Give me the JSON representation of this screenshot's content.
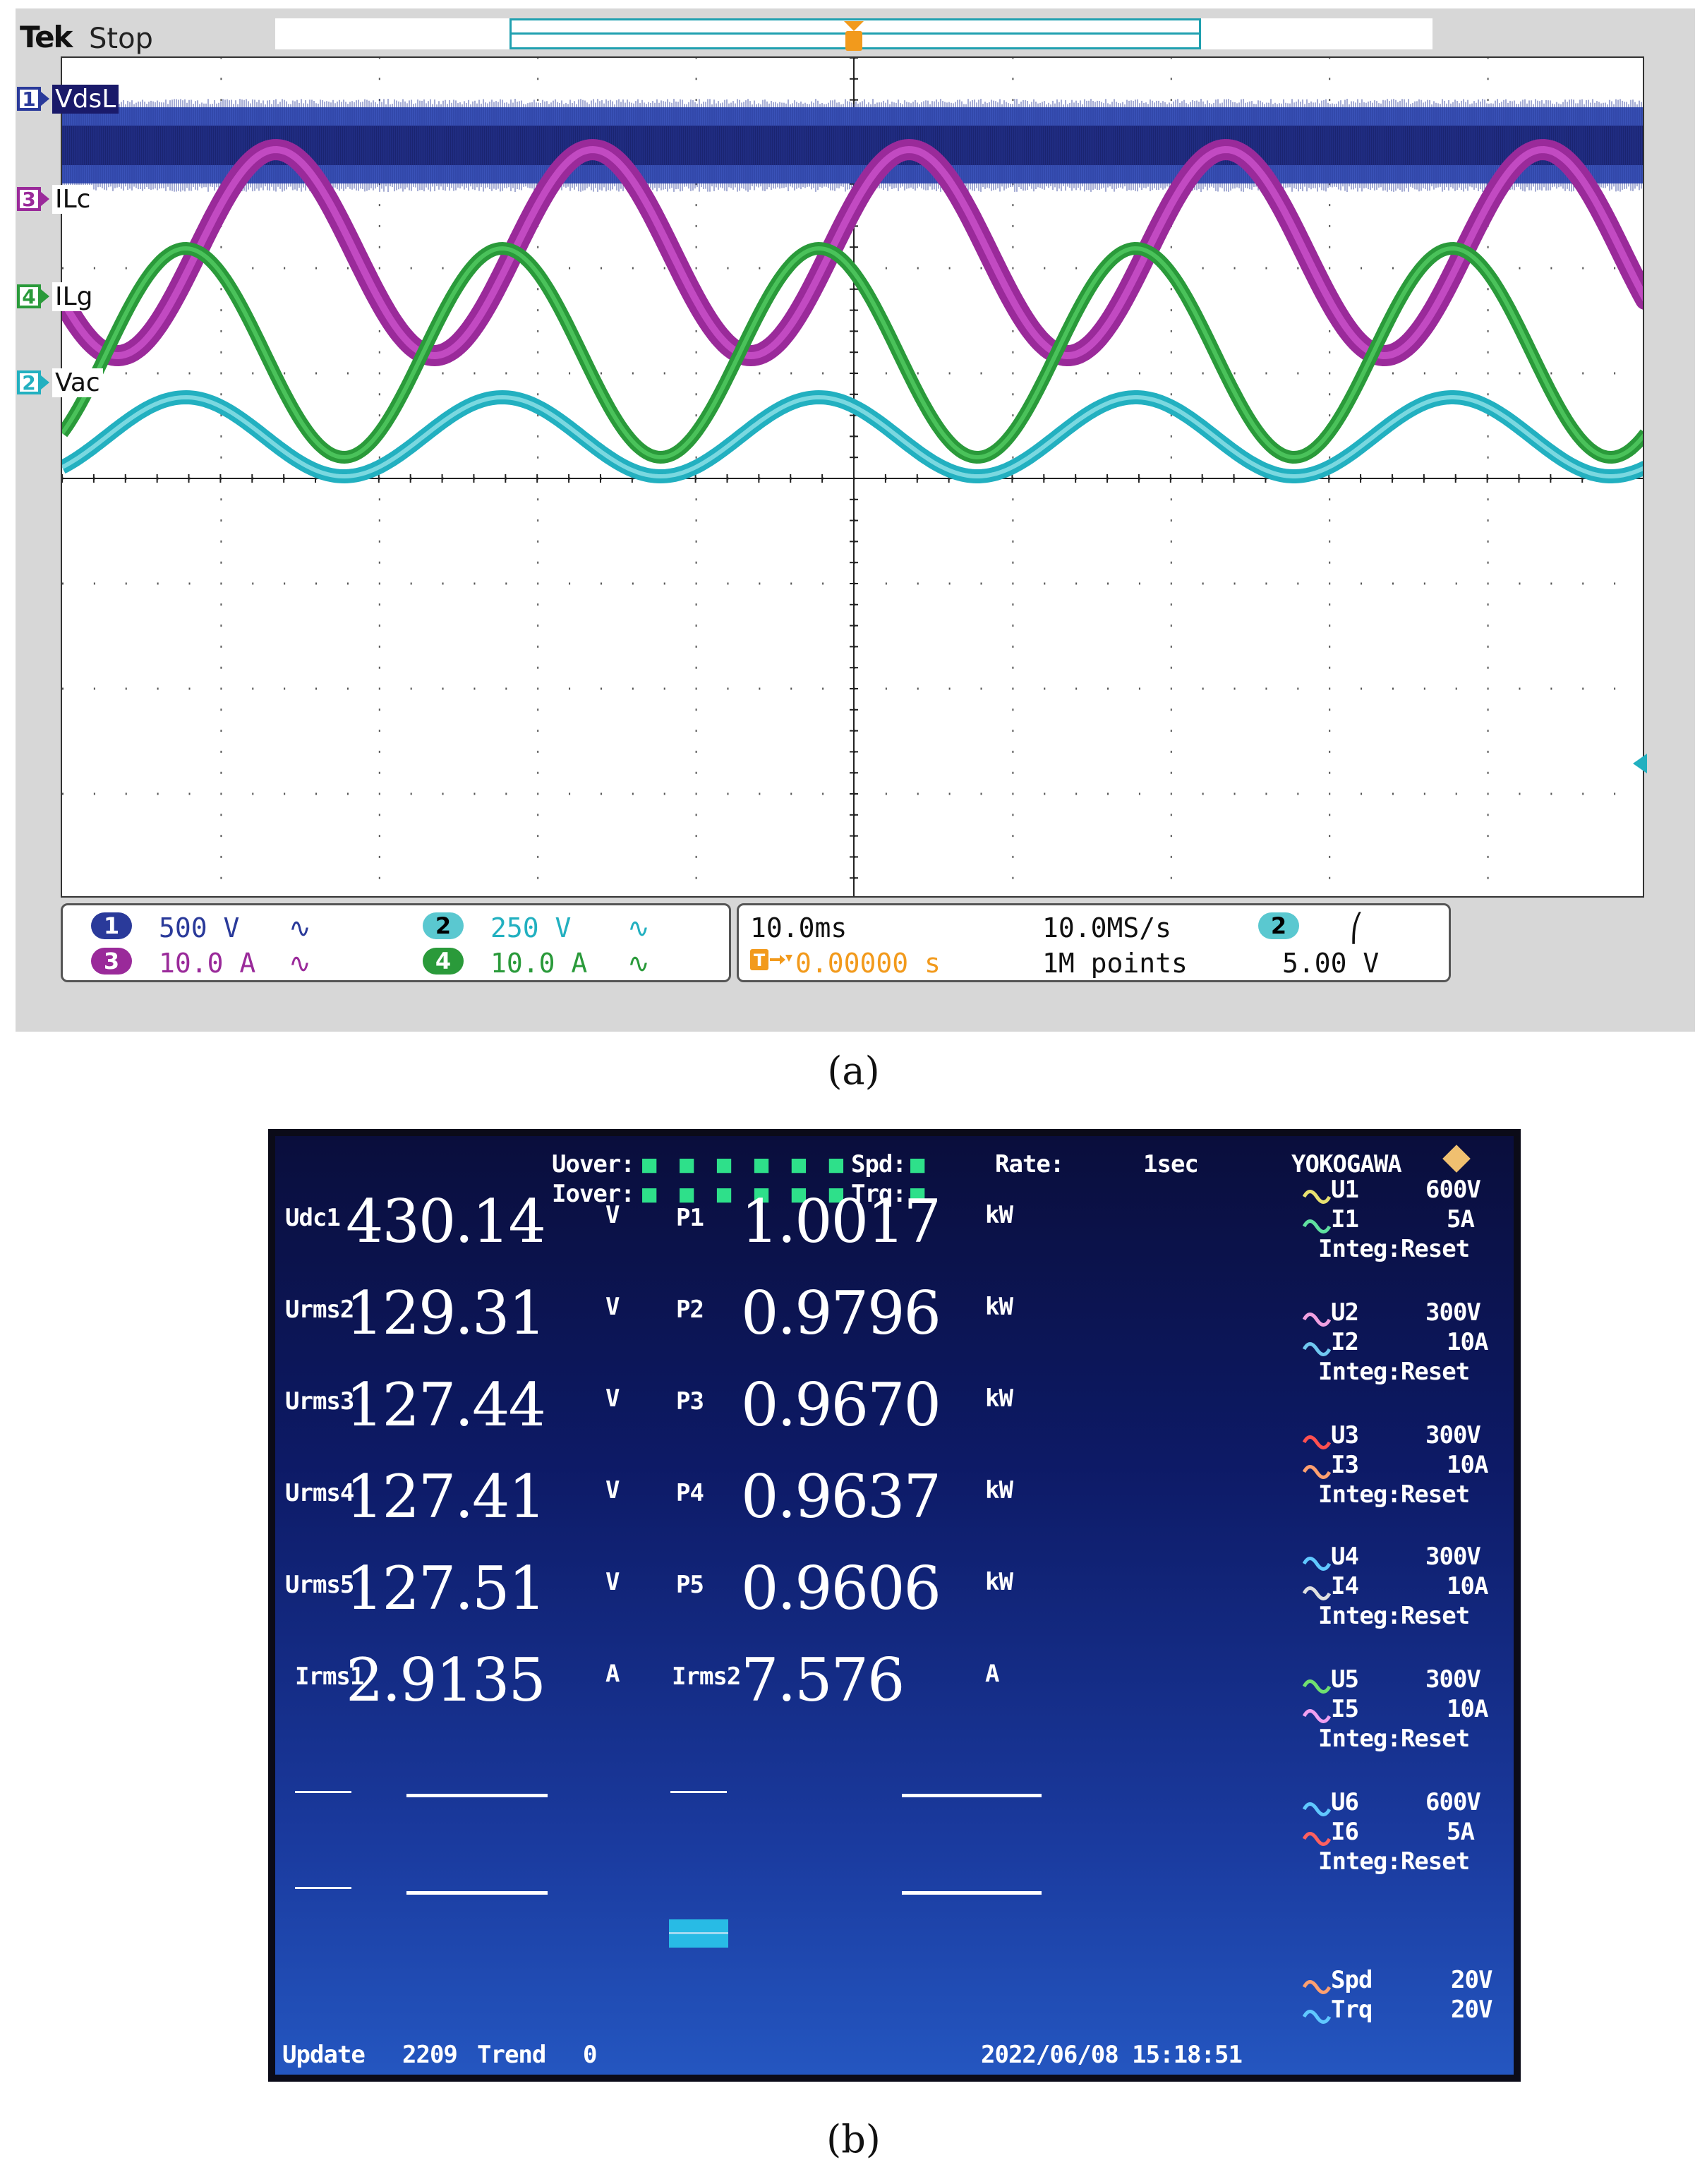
{
  "figure_label_a": "(a)",
  "figure_label_b": "(b)",
  "scope": {
    "brand": "Tek",
    "run_status": "Stop",
    "trigger_marker": "T",
    "channels": [
      {
        "number": "1",
        "label": "VdsL",
        "color": "#2a3a9a"
      },
      {
        "number": "3",
        "label": "ILc",
        "color": "#9a2a9a"
      },
      {
        "number": "4",
        "label": "ILg",
        "color": "#2a9a3a"
      },
      {
        "number": "2",
        "label": "Vac",
        "color": "#22b0c0"
      }
    ],
    "vertical": [
      {
        "channel": "1",
        "scale": "500 V",
        "coupling": "∿",
        "color": "#2a3a9a"
      },
      {
        "channel": "2",
        "scale": "250 V",
        "coupling": "∿",
        "color": "#22b0c0"
      },
      {
        "channel": "3",
        "scale": "10.0 A",
        "coupling": "∿",
        "color": "#9a2a9a"
      },
      {
        "channel": "4",
        "scale": "10.0 A",
        "coupling": "∿",
        "color": "#2a9a3a"
      }
    ],
    "horizontal": {
      "timebase": "10.0ms",
      "sample_rate": "10.0MS/s",
      "position": "0.00000 s",
      "record_length": "1M points",
      "trigger_source": "2",
      "trigger_slope": "⎛",
      "trigger_level": "5.00 V"
    }
  },
  "meter": {
    "brand": "YOKOGAWA",
    "status": {
      "uover_label": "Uover:",
      "iover_label": "Iover:",
      "spd_label": "Spd:",
      "trq_label": "Trq:",
      "dots": "■ ■ ■ ■ ■ ■",
      "single_dot": "■",
      "rate_label": "Rate:",
      "rate_value": "1sec"
    },
    "rows": [
      {
        "left_label": "Udc1",
        "left_value": "430.14",
        "left_unit": "V",
        "right_label": "P1",
        "right_value": "1.0017",
        "right_unit": "kW"
      },
      {
        "left_label": "Urms2",
        "left_value": "129.31",
        "left_unit": "V",
        "right_label": "P2",
        "right_value": "0.9796",
        "right_unit": "kW"
      },
      {
        "left_label": "Urms3",
        "left_value": "127.44",
        "left_unit": "V",
        "right_label": "P3",
        "right_value": "0.9670",
        "right_unit": "kW"
      },
      {
        "left_label": "Urms4",
        "left_value": "127.41",
        "left_unit": "V",
        "right_label": "P4",
        "right_value": "0.9637",
        "right_unit": "kW"
      },
      {
        "left_label": "Urms5",
        "left_value": "127.51",
        "left_unit": "V",
        "right_label": "P5",
        "right_value": "0.9606",
        "right_unit": "kW"
      },
      {
        "left_label": "Irms1",
        "left_value": "2.9135",
        "left_unit": "A",
        "right_label": "Irms2",
        "right_value": "7.576",
        "right_unit": "A"
      }
    ],
    "empty_row_dashes": "-----",
    "elements": [
      {
        "u_label": "U1",
        "u_range": "600V",
        "i_label": "I1",
        "i_range": "5A",
        "integ": "Integ:Reset",
        "u_color": "#e8e070",
        "i_color": "#60e0a0"
      },
      {
        "u_label": "U2",
        "u_range": "300V",
        "i_label": "I2",
        "i_range": "10A",
        "integ": "Integ:Reset",
        "u_color": "#f0a0e0",
        "i_color": "#70c8f0"
      },
      {
        "u_label": "U3",
        "u_range": "300V",
        "i_label": "I3",
        "i_range": "10A",
        "integ": "Integ:Reset",
        "u_color": "#ff5050",
        "i_color": "#ffa070"
      },
      {
        "u_label": "U4",
        "u_range": "300V",
        "i_label": "I4",
        "i_range": "10A",
        "integ": "Integ:Reset",
        "u_color": "#60c8ff",
        "i_color": "#e0e0e0"
      },
      {
        "u_label": "U5",
        "u_range": "300V",
        "i_label": "I5",
        "i_range": "10A",
        "integ": "Integ:Reset",
        "u_color": "#70e070",
        "i_color": "#f0a0f0"
      },
      {
        "u_label": "U6",
        "u_range": "600V",
        "i_label": "I6",
        "i_range": "5A",
        "integ": "Integ:Reset",
        "u_color": "#60c8ff",
        "i_color": "#ff6060"
      }
    ],
    "motor": {
      "spd_label": "Spd",
      "spd_range": "20V",
      "trq_label": "Trq",
      "trq_range": "20V",
      "spd_color": "#ffa070",
      "trq_color": "#60c8ff"
    },
    "footer": {
      "update_label": "Update",
      "update_count": "2209",
      "trend_label": "Trend",
      "trend_value": "0",
      "datetime": "2022/06/08 15:18:51"
    }
  }
}
